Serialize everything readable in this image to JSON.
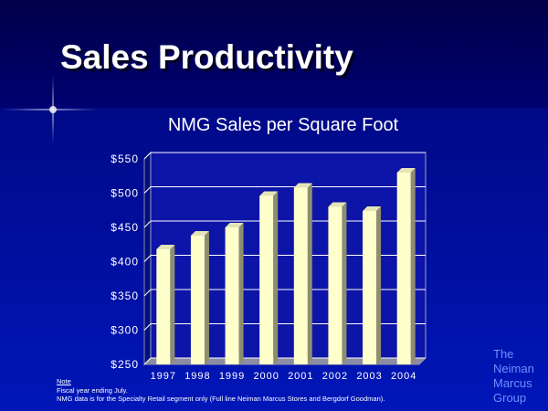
{
  "slide": {
    "title": "Sales Productivity"
  },
  "chart_data": {
    "type": "bar",
    "title": "NMG Sales per Square Foot",
    "categories": [
      "1997",
      "1998",
      "1999",
      "2000",
      "2001",
      "2002",
      "2003",
      "2004"
    ],
    "values": [
      418,
      438,
      450,
      496,
      508,
      480,
      474,
      530
    ],
    "ylim": [
      250,
      550
    ],
    "yticks": [
      250,
      300,
      350,
      400,
      450,
      500,
      550
    ],
    "ytick_labels": [
      "$250",
      "$300",
      "$350",
      "$400",
      "$450",
      "$500",
      "$550"
    ],
    "grid": true,
    "bar_color": "#ffffcc",
    "bar_side_color": "#8e8e6e",
    "bar_top_color": "#e4e4b8",
    "plot_bg": "#0d14a8"
  },
  "footnote": {
    "heading": "Note",
    "line1": "Fiscal year ending July.",
    "line2": "NMG data is for the Specialty Retail segment only (Full line Neiman Marcus Stores and Bergdorf Goodman)."
  },
  "logo": {
    "line1": "The",
    "line2": "Neiman",
    "line3": "Marcus",
    "line4": "Group"
  }
}
